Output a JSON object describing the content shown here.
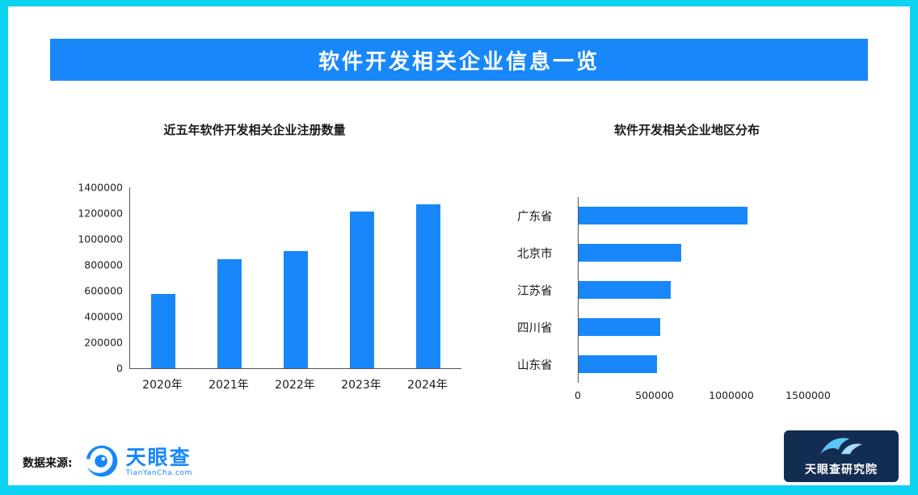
{
  "page": {
    "border_color": "#0CD3EF",
    "background": "#FFFFFF"
  },
  "banner": {
    "title": "软件开发相关企业信息一览",
    "background": "#1787FA",
    "text_color": "#FFFFFF"
  },
  "chart_data": [
    {
      "type": "bar",
      "title": "近五年软件开发相关企业注册数量",
      "categories": [
        "2020年",
        "2021年",
        "2022年",
        "2023年",
        "2024年"
      ],
      "values": [
        575000,
        845000,
        905000,
        1210000,
        1270000
      ],
      "xlabel": "",
      "ylabel": "",
      "ylim": [
        0,
        1400000
      ],
      "ytick_labels": [
        "1400000",
        "1200000",
        "1000000",
        "800000",
        "600000",
        "400000",
        "200000",
        "0"
      ],
      "grid": false,
      "legend": false,
      "bar_color": "#1787FA"
    },
    {
      "type": "bar-horizontal",
      "title": "软件开发相关企业地区分布",
      "categories": [
        "广东省",
        "北京市",
        "江苏省",
        "四川省",
        "山东省"
      ],
      "values": [
        1100000,
        670000,
        600000,
        530000,
        510000
      ],
      "xlim": [
        0,
        1500000
      ],
      "xtick_values": [
        0,
        500000,
        1000000,
        1500000
      ],
      "xtick_labels": [
        "0",
        "500000",
        "1000000",
        "1500000"
      ],
      "grid": false,
      "legend": false,
      "bar_color": "#1787FA"
    }
  ],
  "footer": {
    "source_label": "数据来源:",
    "tianyancha_logo": {
      "name": "天眼查",
      "subtext": "TianYanCha.com",
      "color": "#1787FA"
    },
    "institute_logo": {
      "name": "天眼查研究院",
      "background": "#132C51",
      "text_color": "#FFFFFF"
    }
  }
}
